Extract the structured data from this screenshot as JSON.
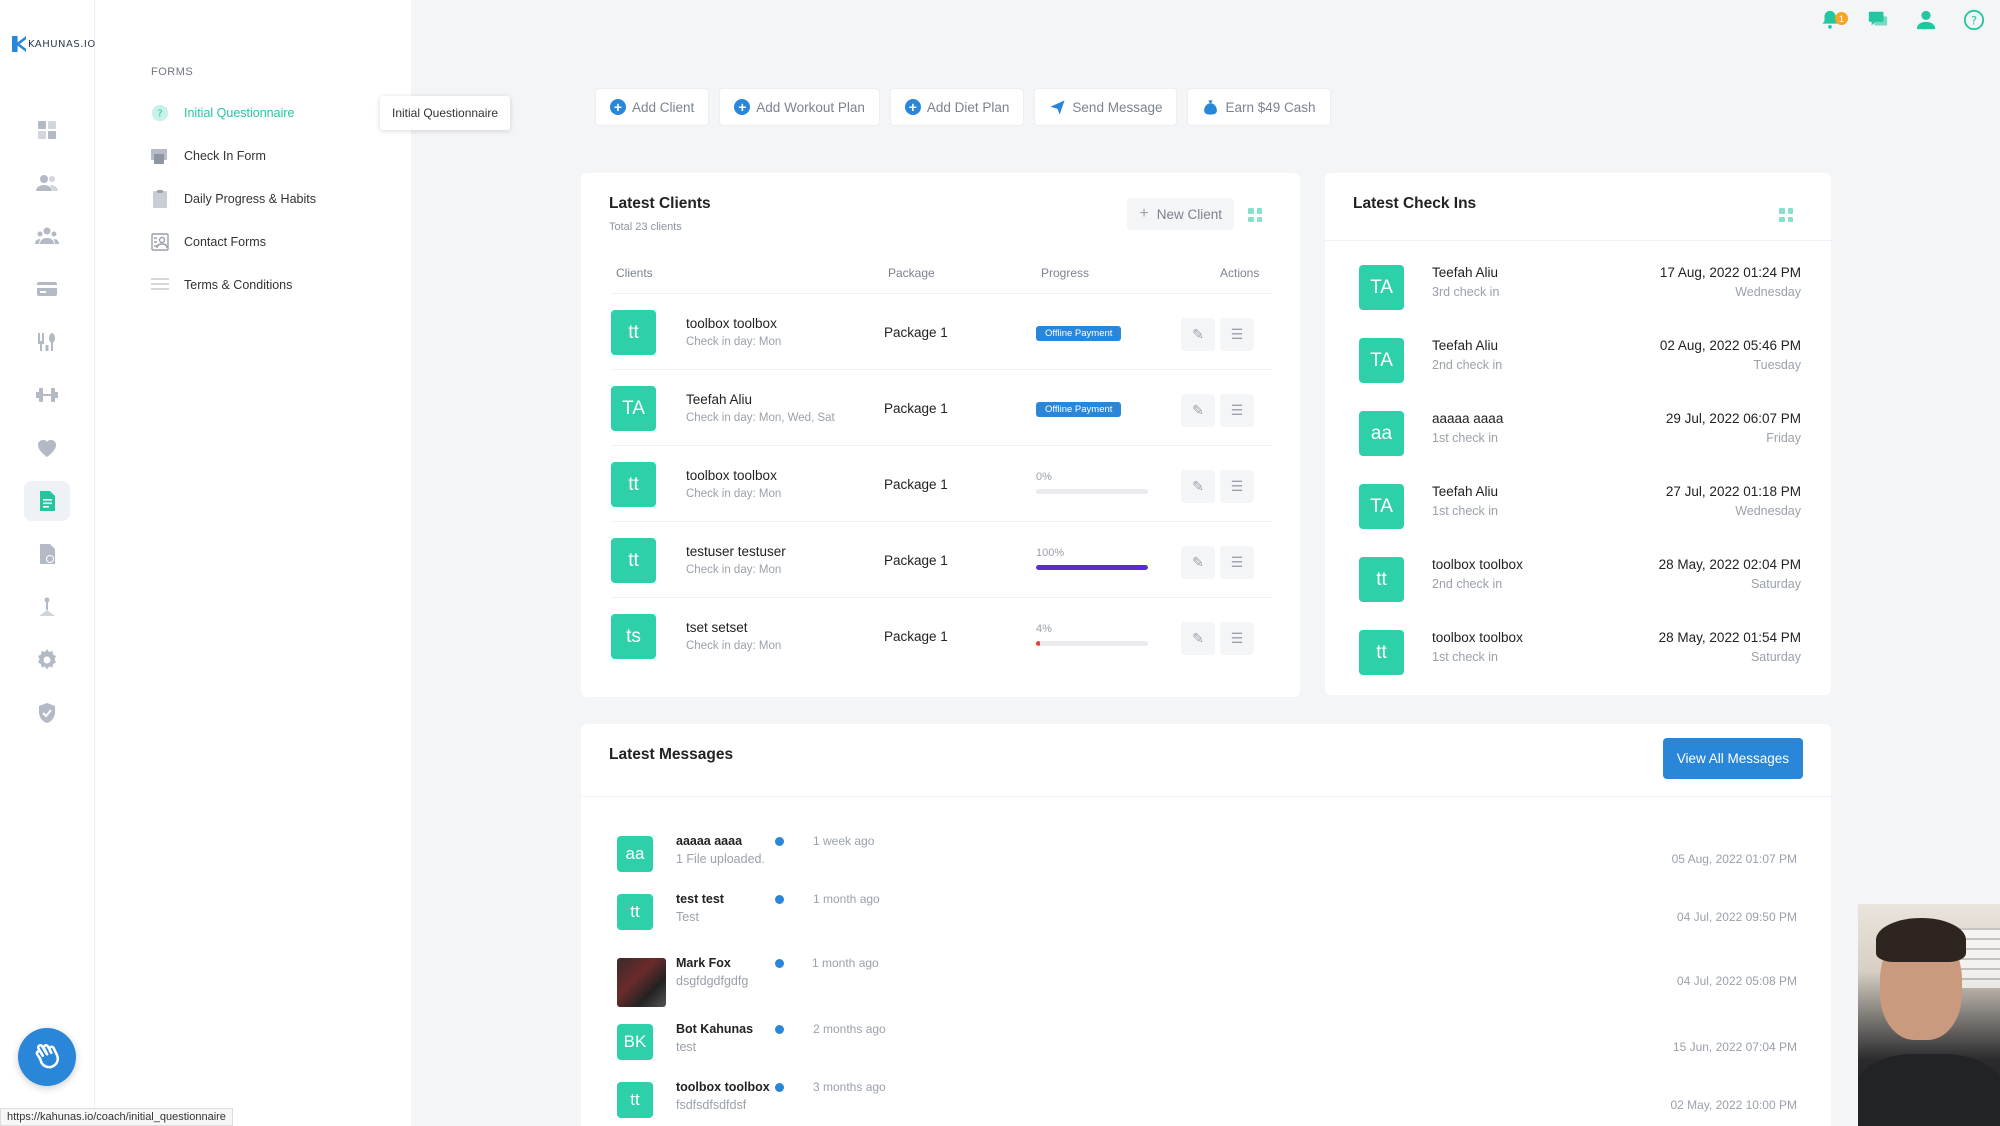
{
  "brand": {
    "logo_text": "KAHUNAS.IO"
  },
  "rail": {
    "icons": [
      "dashboard-icon",
      "clients-icon",
      "groups-icon",
      "payments-icon",
      "nutrition-icon",
      "workouts-icon",
      "habits-icon",
      "forms-icon",
      "files-icon",
      "tasks-icon",
      "settings-icon",
      "shield-icon"
    ],
    "active": "forms-icon"
  },
  "forms": {
    "heading": "FORMS",
    "items": [
      {
        "label": "Initial Questionnaire",
        "icon": "question-icon",
        "active": true
      },
      {
        "label": "Check In Form",
        "icon": "checkin-form-icon",
        "active": false
      },
      {
        "label": "Daily Progress & Habits",
        "icon": "clipboard-icon",
        "active": false
      },
      {
        "label": "Contact Forms",
        "icon": "contact-form-icon",
        "active": false
      },
      {
        "label": "Terms & Conditions",
        "icon": "list-icon",
        "active": false
      }
    ],
    "tooltip": "Initial Questionnaire"
  },
  "top_icons": {
    "notification_count": "1"
  },
  "quick_actions": [
    {
      "label": "Add Client",
      "icon": "plus-circle-icon"
    },
    {
      "label": "Add Workout Plan",
      "icon": "plus-circle-icon"
    },
    {
      "label": "Add Diet Plan",
      "icon": "plus-circle-icon"
    },
    {
      "label": "Send Message",
      "icon": "paper-plane-icon"
    },
    {
      "label": "Earn $49 Cash",
      "icon": "money-bag-icon"
    }
  ],
  "latest_clients": {
    "title": "Latest Clients",
    "subtitle": "Total 23 clients",
    "new_client_label": "New Client",
    "headers": {
      "clients": "Clients",
      "package": "Package",
      "progress": "Progress",
      "actions": "Actions"
    },
    "rows": [
      {
        "initials": "tt",
        "name": "toolbox toolbox",
        "day": "Check in day: Mon",
        "package": "Package 1",
        "status": "Offline Payment"
      },
      {
        "initials": "TA",
        "name": "Teefah Aliu",
        "day": "Check in day: Mon, Wed, Sat",
        "package": "Package 1",
        "status": "Offline Payment"
      },
      {
        "initials": "tt",
        "name": "toolbox toolbox",
        "day": "Check in day: Mon",
        "package": "Package 1",
        "progress_label": "0%",
        "progress": 0,
        "progress_color": "#e9ebef"
      },
      {
        "initials": "tt",
        "name": "testuser testuser",
        "day": "Check in day: Mon",
        "package": "Package 1",
        "progress_label": "100%",
        "progress": 100,
        "progress_color": "#5b2bd6"
      },
      {
        "initials": "ts",
        "name": "tset setset",
        "day": "Check in day: Mon",
        "package": "Package 1",
        "progress_label": "4%",
        "progress": 4,
        "progress_color": "#e0433b"
      }
    ]
  },
  "latest_checkins": {
    "title": "Latest Check Ins",
    "rows": [
      {
        "initials": "TA",
        "name": "Teefah Aliu",
        "checkin": "3rd check in",
        "date": "17 Aug, 2022 01:24 PM",
        "day": "Wednesday"
      },
      {
        "initials": "TA",
        "name": "Teefah Aliu",
        "checkin": "2nd check in",
        "date": "02 Aug, 2022 05:46 PM",
        "day": "Tuesday"
      },
      {
        "initials": "aa",
        "name": "aaaaa aaaa",
        "checkin": "1st check in",
        "date": "29 Jul, 2022 06:07 PM",
        "day": "Friday"
      },
      {
        "initials": "TA",
        "name": "Teefah Aliu",
        "checkin": "1st check in",
        "date": "27 Jul, 2022 01:18 PM",
        "day": "Wednesday"
      },
      {
        "initials": "tt",
        "name": "toolbox toolbox",
        "checkin": "2nd check in",
        "date": "28 May, 2022 02:04 PM",
        "day": "Saturday"
      },
      {
        "initials": "tt",
        "name": "toolbox toolbox",
        "checkin": "1st check in",
        "date": "28 May, 2022 01:54 PM",
        "day": "Saturday"
      }
    ]
  },
  "latest_messages": {
    "title": "Latest Messages",
    "view_all_label": "View All Messages",
    "rows": [
      {
        "initials": "aa",
        "name": "aaaaa aaaa",
        "text": "1 File uploaded.",
        "ago": "1 week ago",
        "date": "05 Aug, 2022 01:07 PM"
      },
      {
        "initials": "tt",
        "name": "test test",
        "text": "Test",
        "ago": "1 month ago",
        "date": "04 Jul, 2022 09:50 PM"
      },
      {
        "initials": "",
        "photo": true,
        "name": "Mark Fox",
        "text": "dsgfdgdfgdfg",
        "ago": "1 month ago",
        "date": "04 Jul, 2022 05:08 PM"
      },
      {
        "initials": "BK",
        "name": "Bot Kahunas",
        "text": "test",
        "ago": "2 months ago",
        "date": "15 Jun, 2022 07:04 PM"
      },
      {
        "initials": "tt",
        "name": "toolbox toolbox",
        "text": "fsdfsdfsdfdsf",
        "ago": "3 months ago",
        "date": "02 May, 2022 10:00 PM"
      }
    ]
  },
  "status_bar": {
    "url": "https://kahunas.io/coach/initial_questionnaire"
  },
  "colors": {
    "accent": "#22c7a0",
    "primary": "#2a86d8",
    "avatar": "#2ed0aa"
  }
}
